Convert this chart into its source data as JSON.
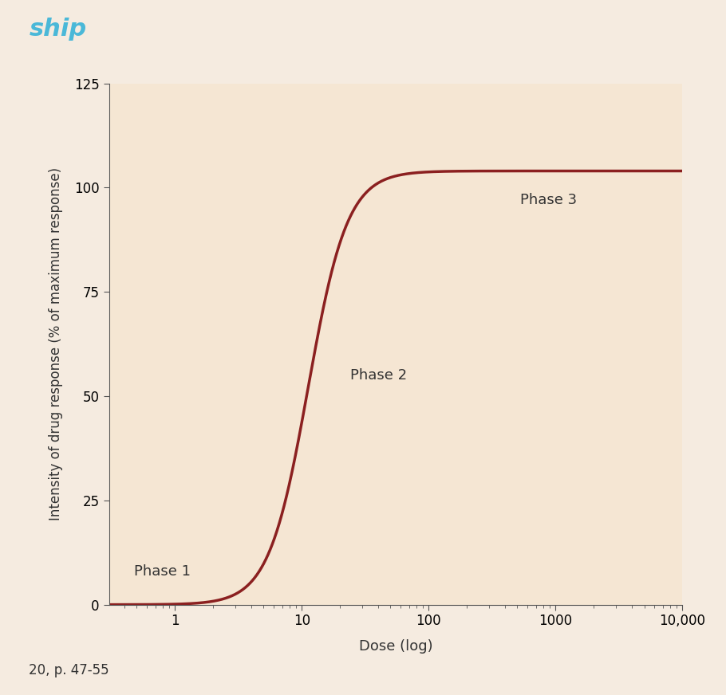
{
  "title": "",
  "xlabel": "Dose (log)",
  "ylabel": "Intensity of drug response (% of maximum response)",
  "background_color": "#f5ebe0",
  "plot_bg_color": "#f5e6d3",
  "curve_color": "#8b2020",
  "curve_linewidth": 2.5,
  "ylim": [
    0,
    125
  ],
  "yticks": [
    0,
    25,
    50,
    75,
    100,
    125
  ],
  "xlog_min": -0.52,
  "xlog_max": 4.0,
  "max_response": 104,
  "ec50_log": 1.05,
  "hill": 2.8,
  "annotations": [
    {
      "text": "Phase 1",
      "x_log": -0.32,
      "y": 8,
      "fontsize": 13
    },
    {
      "text": "Phase 2",
      "x_log": 1.38,
      "y": 55,
      "fontsize": 13
    },
    {
      "text": "Phase 3",
      "x_log": 2.72,
      "y": 97,
      "fontsize": 13
    }
  ],
  "xtick_labels": [
    "1",
    "10",
    "100",
    "1000",
    "10,000"
  ],
  "xtick_positions": [
    0,
    1,
    2,
    3,
    4
  ],
  "footer_text": "20, p. 47-55",
  "header_text": "ship",
  "header_color": "#4ab8d8"
}
